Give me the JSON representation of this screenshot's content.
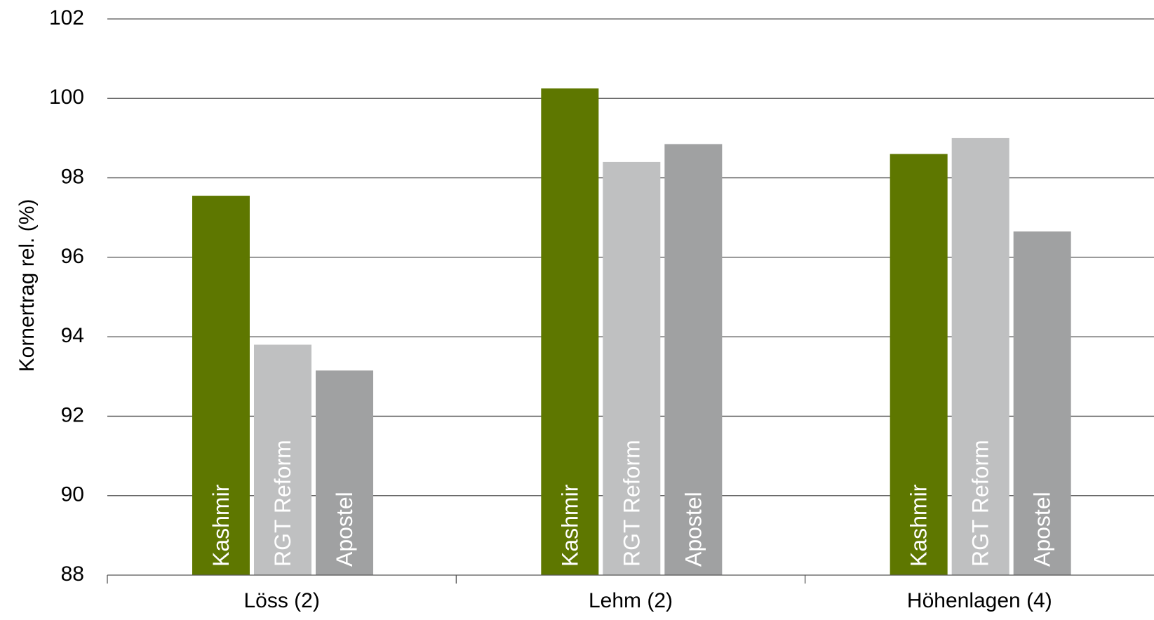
{
  "chart_data": {
    "type": "bar",
    "title": "",
    "xlabel": "",
    "ylabel": "Kornertrag rel. (%)",
    "ylim": [
      88,
      102
    ],
    "yticks": [
      88,
      90,
      92,
      94,
      96,
      98,
      100,
      102
    ],
    "grid": true,
    "categories": [
      "Löss (2)",
      "Lehm  (2)",
      "Höhenlagen (4)"
    ],
    "series": [
      {
        "name": "Kashmir",
        "color": "#5e7700",
        "values": [
          97.55,
          100.25,
          98.6
        ]
      },
      {
        "name": "RGT Reform",
        "color": "#bfc0c1",
        "values": [
          93.8,
          98.4,
          99.0
        ]
      },
      {
        "name": "Apostel",
        "color": "#a0a1a2",
        "values": [
          93.15,
          98.85,
          96.65
        ]
      }
    ]
  }
}
